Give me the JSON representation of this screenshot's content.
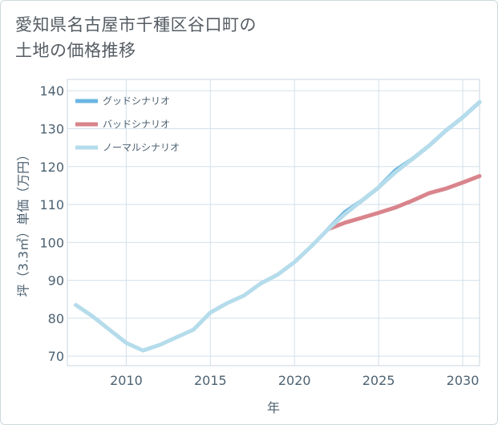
{
  "title": {
    "line1": "愛知県名古屋市千種区谷口町の",
    "line2": "土地の価格推移"
  },
  "chart_data": {
    "type": "line",
    "xlabel": "年",
    "ylabel": "坪（3.3㎡）単価（万円）",
    "xlim": [
      2006.5,
      2031
    ],
    "ylim": [
      67.5,
      143
    ],
    "x_ticks": [
      2010,
      2015,
      2020,
      2025,
      2030
    ],
    "y_ticks": [
      70,
      80,
      90,
      100,
      110,
      120,
      130,
      140
    ],
    "x_tick_labels": [
      "2010",
      "2015",
      "2020",
      "2025",
      "2030"
    ],
    "y_tick_labels": [
      "70",
      "80",
      "90",
      "100",
      "110",
      "120",
      "130",
      "140"
    ],
    "grid": true,
    "legend_position": "top-left",
    "series": [
      {
        "name": "グッドシナリオ",
        "color": "#6bb6e3",
        "x": [
          2022,
          2023,
          2024,
          2025,
          2026,
          2027,
          2028,
          2029,
          2030,
          2031
        ],
        "y": [
          103.5,
          108,
          111,
          114.5,
          119,
          122,
          125.5,
          129.5,
          133,
          137
        ]
      },
      {
        "name": "バッドシナリオ",
        "color": "#d9848c",
        "x": [
          2022,
          2023,
          2024,
          2025,
          2026,
          2027,
          2028,
          2029,
          2030,
          2031
        ],
        "y": [
          103.5,
          105.2,
          106.5,
          107.8,
          109.2,
          111,
          113,
          114.2,
          115.8,
          117.5
        ]
      },
      {
        "name": "ノーマルシナリオ",
        "color": "#b5dceb",
        "x": [
          2007,
          2008,
          2009,
          2010,
          2011,
          2012,
          2013,
          2014,
          2015,
          2016,
          2017,
          2018,
          2019,
          2020,
          2021,
          2022,
          2023,
          2024,
          2025,
          2026,
          2027,
          2028,
          2029,
          2030,
          2031
        ],
        "y": [
          83.5,
          80.5,
          77,
          73.5,
          71.5,
          73,
          75,
          77,
          81.5,
          84,
          86,
          89.2,
          91.5,
          94.8,
          99,
          103.5,
          107.5,
          111,
          114.5,
          118.5,
          122,
          125.5,
          129.5,
          133,
          137
        ]
      }
    ]
  }
}
